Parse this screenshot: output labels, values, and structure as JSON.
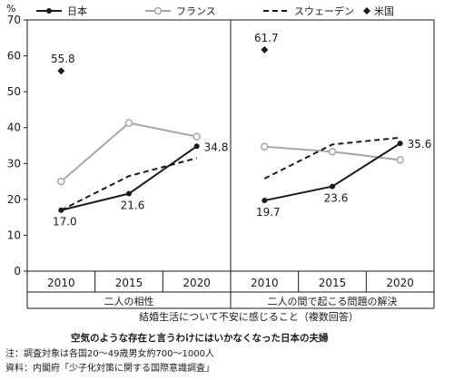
{
  "chart_data": {
    "type": "line",
    "y_unit": "%",
    "ylim": [
      0,
      70
    ],
    "yticks": [
      0,
      10,
      20,
      30,
      40,
      50,
      60,
      70
    ],
    "grid": false,
    "legend_position": "top",
    "groups": [
      {
        "label": "二人の相性",
        "years": [
          "2010",
          "2015",
          "2020"
        ],
        "series": [
          {
            "name": "日本",
            "values": [
              17.0,
              21.6,
              34.8
            ],
            "labels": [
              "17.0",
              "21.6",
              "34.8"
            ]
          },
          {
            "name": "フランス",
            "values": [
              25.0,
              41.3,
              37.5
            ],
            "labels": []
          },
          {
            "name": "スウェーデン",
            "values": [
              17.0,
              26.5,
              31.5
            ],
            "labels": []
          },
          {
            "name": "米国",
            "values": [
              55.8
            ],
            "labels": [
              "55.8"
            ]
          }
        ]
      },
      {
        "label": "二人の間で起こる問題の解決",
        "years": [
          "2010",
          "2015",
          "2020"
        ],
        "series": [
          {
            "name": "日本",
            "values": [
              19.7,
              23.6,
              35.6
            ],
            "labels": [
              "19.7",
              "23.6",
              "35.6"
            ]
          },
          {
            "name": "フランス",
            "values": [
              34.7,
              33.3,
              31.0
            ],
            "labels": []
          },
          {
            "name": "スウェーデン",
            "values": [
              25.8,
              35.3,
              37.2
            ],
            "labels": []
          },
          {
            "name": "米国",
            "values": [
              61.7
            ],
            "labels": [
              "61.7"
            ]
          }
        ]
      }
    ],
    "xlabel": "結婚生活について不安に感じること（複数回答）",
    "title": "空気のような存在と言うわけにはいかなくなった日本の夫婦",
    "series_styles": [
      {
        "name": "日本",
        "color": "#1a1a1a",
        "style": "solid",
        "marker": "dot"
      },
      {
        "name": "フランス",
        "color": "#a6a6a6",
        "style": "solid",
        "marker": "circle"
      },
      {
        "name": "スウェーデン",
        "color": "#1a1a1a",
        "style": "dashed",
        "marker": "none"
      },
      {
        "name": "米国",
        "color": "#1a1a1a",
        "style": "none",
        "marker": "diamond"
      }
    ]
  },
  "caption": {
    "title": "空気のような存在と言うわけにはいかなくなった日本の夫婦",
    "note": "注：調査対象は各国20～49歳男女約700～1000人",
    "source": "資料：内閣府「少子化対策に関する国際意識調査」"
  }
}
